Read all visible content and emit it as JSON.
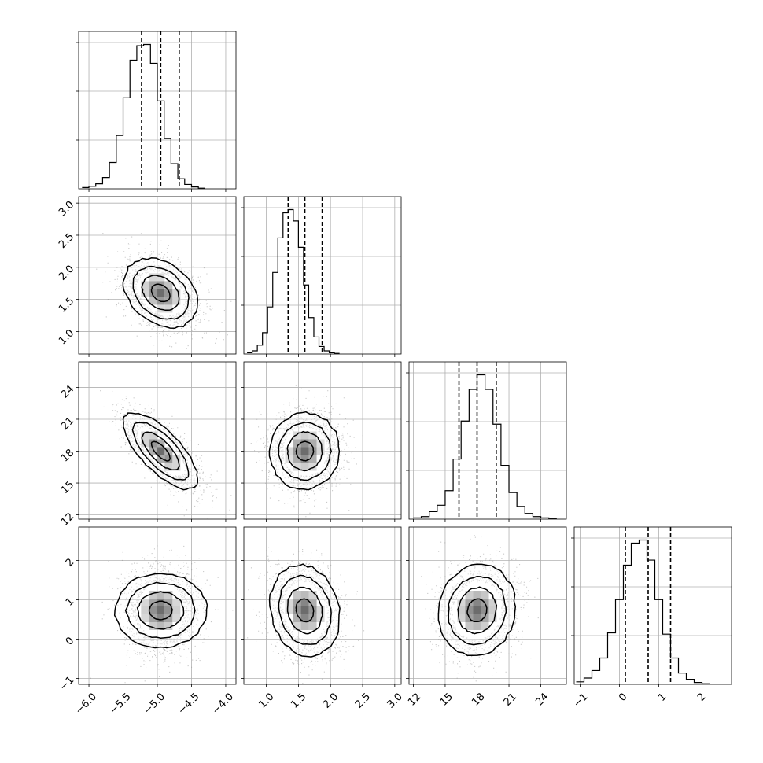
{
  "chart_data": {
    "type": "corner",
    "parameters": 4,
    "colors": {
      "line": "#000000",
      "grid": "#b0b0b0",
      "scatter": "#9a9a9a",
      "background": "#ffffff"
    },
    "grid": true,
    "ranges": [
      [
        -6.15,
        -3.85
      ],
      [
        0.65,
        3.1
      ],
      [
        11.6,
        26.4
      ],
      [
        -1.15,
        2.85
      ]
    ],
    "ticks": [
      [
        "−6.0",
        "−5.5",
        "−5.0",
        "−4.5",
        "−4.0"
      ],
      [
        "1.0",
        "1.5",
        "2.0",
        "2.5",
        "3.0"
      ],
      [
        "12",
        "15",
        "18",
        "21",
        "24"
      ],
      [
        "−1",
        "0",
        "1",
        "2"
      ]
    ],
    "tick_values": [
      [
        -6.0,
        -5.5,
        -5.0,
        -4.5,
        -4.0
      ],
      [
        1.0,
        1.5,
        2.0,
        2.5,
        3.0
      ],
      [
        12,
        15,
        18,
        21,
        24
      ],
      [
        -1,
        0,
        1,
        2
      ]
    ],
    "quantiles_16_50_84": [
      [
        -5.23,
        -4.95,
        -4.68
      ],
      [
        1.34,
        1.6,
        1.87
      ],
      [
        16.3,
        18.0,
        19.8
      ],
      [
        0.15,
        0.73,
        1.3
      ]
    ],
    "histograms": [
      {
        "x_start": -6.1,
        "bin_width": 0.1,
        "counts": [
          2,
          4,
          8,
          18,
          42,
          85,
          145,
          205,
          228,
          230,
          200,
          140,
          80,
          40,
          16,
          7,
          3,
          1
        ]
      },
      {
        "x_start": 0.7,
        "bin_width": 0.08,
        "counts": [
          2,
          5,
          14,
          34,
          75,
          130,
          185,
          225,
          230,
          212,
          170,
          110,
          58,
          27,
          12,
          5,
          2,
          1
        ]
      },
      {
        "x_start": 12.0,
        "bin_width": 0.75,
        "counts": [
          2,
          4,
          12,
          22,
          45,
          95,
          155,
          205,
          228,
          205,
          150,
          85,
          42,
          20,
          9,
          4,
          2,
          1
        ]
      },
      {
        "x_start": -1.1,
        "bin_width": 0.2,
        "counts": [
          4,
          10,
          22,
          42,
          82,
          135,
          190,
          225,
          230,
          198,
          135,
          80,
          42,
          18,
          8,
          3,
          1
        ]
      }
    ],
    "pairs": [
      {
        "row": 1,
        "col": 0,
        "mean": [
          -4.95,
          1.6
        ],
        "sd": [
          0.27,
          0.27
        ],
        "corr": -0.3
      },
      {
        "row": 2,
        "col": 0,
        "mean": [
          -4.95,
          18.0
        ],
        "sd": [
          0.27,
          1.8
        ],
        "corr": -0.72
      },
      {
        "row": 2,
        "col": 1,
        "mean": [
          1.6,
          18.0
        ],
        "sd": [
          0.27,
          1.8
        ],
        "corr": 0.03
      },
      {
        "row": 3,
        "col": 0,
        "mean": [
          -4.95,
          0.73
        ],
        "sd": [
          0.27,
          0.58
        ],
        "corr": 0.0
      },
      {
        "row": 3,
        "col": 1,
        "mean": [
          1.6,
          0.73
        ],
        "sd": [
          0.27,
          0.58
        ],
        "corr": -0.14
      },
      {
        "row": 3,
        "col": 2,
        "mean": [
          18.0,
          0.73
        ],
        "sd": [
          1.8,
          0.58
        ],
        "corr": 0.08
      }
    ],
    "contour_levels_sigma": [
      0.5,
      1.0,
      1.5,
      2.0
    ]
  }
}
